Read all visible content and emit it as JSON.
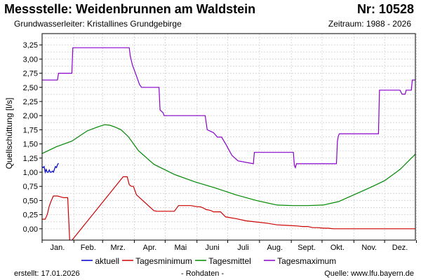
{
  "header": {
    "title": "Messstelle: Weidenbrunnen am Waldstein",
    "nr": "Nr: 10528",
    "subtitle": "Grundwasserleiter: Kristallines Grundgebirge",
    "period": "Zeitraum: 1988 - 2026"
  },
  "footer": {
    "created": "erstellt:  17.01.2026",
    "raw": "- Rohdaten -",
    "source": "Quelle: www.lfu.bayern.de"
  },
  "chart_data": {
    "type": "line",
    "title": "",
    "ylabel": "Quellschüttung [l/s]",
    "xlabel": "",
    "ylim": [
      -0.2,
      3.45
    ],
    "xlim": [
      1,
      365
    ],
    "grid": true,
    "legend_position": "bottom",
    "yticks": [
      "3,25",
      "3,00",
      "2,75",
      "2,50",
      "2,25",
      "2,00",
      "1,75",
      "1,50",
      "1,25",
      "1,00",
      "0,75",
      "0,50",
      "0,25",
      "0,00"
    ],
    "ytick_values": [
      3.25,
      3.0,
      2.75,
      2.5,
      2.25,
      2.0,
      1.75,
      1.5,
      1.25,
      1.0,
      0.75,
      0.5,
      0.25,
      0.0
    ],
    "xticks": [
      "Jan.",
      "Feb.",
      "Mrz.",
      "Apr.",
      "Mai",
      "Juni",
      "Juli",
      "Aug.",
      "Sept.",
      "Okt.",
      "Nov.",
      "Dez."
    ],
    "xtick_days": [
      16,
      46,
      75,
      106,
      136,
      167,
      197,
      228,
      259,
      289,
      320,
      350
    ],
    "month_starts": [
      1,
      32,
      60,
      91,
      121,
      152,
      182,
      213,
      244,
      274,
      305,
      335,
      366
    ],
    "series": [
      {
        "name": "aktuell",
        "color": "#0000cc",
        "x": [
          1,
          2,
          3,
          4,
          5,
          6,
          7,
          8,
          9,
          10,
          11,
          12,
          13,
          14,
          15,
          16,
          17
        ],
        "y": [
          1.1,
          1.08,
          1.1,
          1.0,
          1.05,
          1.0,
          1.0,
          1.04,
          1.0,
          1.0,
          1.02,
          1.0,
          1.05,
          1.1,
          1.08,
          1.13,
          1.16
        ]
      },
      {
        "name": "Tagesminimum",
        "color": "#cc0000",
        "x": [
          1,
          4,
          6,
          8,
          10,
          12,
          16,
          22,
          24,
          26,
          28,
          80,
          82,
          84,
          86,
          88,
          90,
          93,
          110,
          113,
          130,
          134,
          140,
          146,
          152,
          155,
          158,
          161,
          164,
          166,
          168,
          170,
          175,
          180,
          190,
          200,
          210,
          220,
          230,
          240,
          250,
          255,
          260,
          265,
          270,
          275,
          280,
          285,
          290,
          295,
          296,
          300,
          302,
          305,
          315,
          320,
          324,
          330,
          340,
          345,
          350,
          354,
          356,
          358,
          360,
          363,
          365
        ],
        "y": [
          0.17,
          0.17,
          0.25,
          0.4,
          0.5,
          0.58,
          0.58,
          0.55,
          0.55,
          0.55,
          -0.25,
          0.92,
          0.92,
          0.92,
          0.78,
          0.75,
          0.75,
          0.6,
          0.32,
          0.31,
          0.31,
          0.41,
          0.41,
          0.41,
          0.39,
          0.39,
          0.37,
          0.34,
          0.33,
          0.32,
          0.3,
          0.3,
          0.3,
          0.21,
          0.18,
          0.14,
          0.12,
          0.1,
          0.07,
          0.06,
          0.05,
          0.04,
          0.04,
          0.02,
          0.02,
          0.01,
          0.01,
          0.0,
          0.0,
          0.0,
          0.0,
          0.0,
          0.0,
          0.0,
          0.0,
          0.0,
          0.0,
          0.0,
          0.0,
          0.0,
          0.0,
          0.0,
          0.0,
          0.0,
          0.0,
          0.0,
          0.0
        ]
      },
      {
        "name": "Tagesmittel",
        "color": "#008800",
        "x": [
          1,
          15,
          30,
          45,
          55,
          62,
          67,
          72,
          78,
          85,
          95,
          110,
          130,
          150,
          170,
          190,
          210,
          230,
          245,
          260,
          275,
          290,
          305,
          320,
          335,
          350,
          365
        ],
        "y": [
          1.33,
          1.45,
          1.55,
          1.73,
          1.8,
          1.84,
          1.83,
          1.8,
          1.75,
          1.63,
          1.38,
          1.14,
          0.96,
          0.83,
          0.72,
          0.6,
          0.5,
          0.42,
          0.41,
          0.41,
          0.42,
          0.48,
          0.6,
          0.72,
          0.85,
          1.05,
          1.32
        ]
      },
      {
        "name": "Tagesmaximum",
        "color": "#8800cc",
        "x": [
          1,
          16,
          17,
          30,
          31,
          86,
          87,
          89,
          93,
          96,
          98,
          100,
          101,
          115,
          116,
          119,
          120,
          135,
          136,
          160,
          162,
          168,
          172,
          176,
          180,
          183,
          186,
          189,
          192,
          207,
          208,
          246,
          247,
          248,
          249,
          288,
          289,
          290,
          291,
          329,
          330,
          348,
          349,
          350,
          352,
          355,
          356,
          361,
          362,
          365
        ],
        "y": [
          2.63,
          2.63,
          2.75,
          2.75,
          3.2,
          3.2,
          3.05,
          2.9,
          2.7,
          2.55,
          2.5,
          2.5,
          2.5,
          2.5,
          2.1,
          2.05,
          2.0,
          2.0,
          2.0,
          2.0,
          1.75,
          1.7,
          1.62,
          1.62,
          1.5,
          1.4,
          1.3,
          1.25,
          1.2,
          1.15,
          1.35,
          1.35,
          1.12,
          1.08,
          1.15,
          1.15,
          1.55,
          1.65,
          1.68,
          1.68,
          2.45,
          2.45,
          2.45,
          2.45,
          2.38,
          2.38,
          2.45,
          2.45,
          2.63,
          2.63
        ]
      }
    ]
  }
}
